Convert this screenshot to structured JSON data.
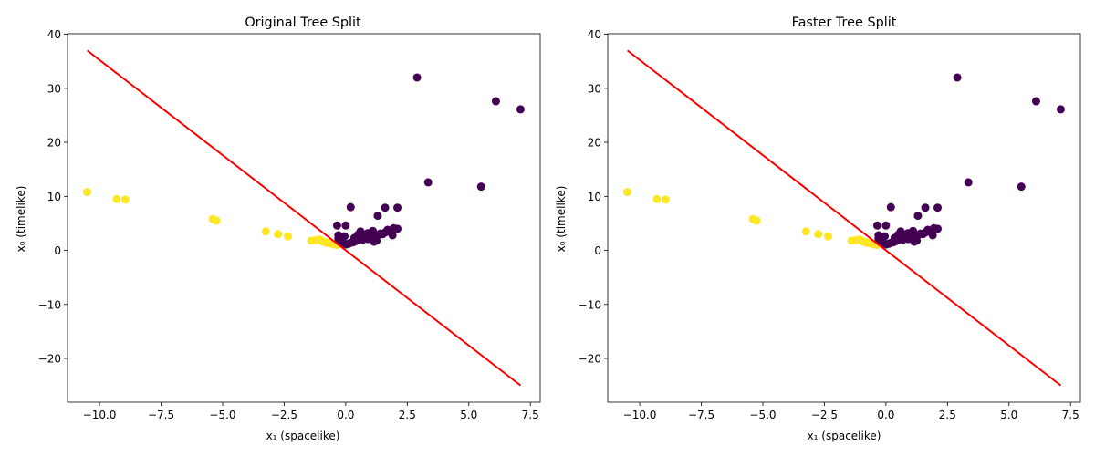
{
  "chart_data": [
    {
      "type": "scatter",
      "title": "Original Tree Split",
      "xlabel": "x₁ (spacelike)",
      "ylabel": "x₀ (timelike)",
      "xlim": [
        -11.3,
        7.9
      ],
      "ylim": [
        -28.1,
        40.1
      ],
      "xticks": [
        -10.0,
        -7.5,
        -5.0,
        -2.5,
        0.0,
        2.5,
        5.0,
        7.5
      ],
      "xtick_labels": [
        "−10.0",
        "−7.5",
        "−5.0",
        "−2.5",
        "0.0",
        "2.5",
        "5.0",
        "7.5"
      ],
      "yticks": [
        -20,
        -10,
        0,
        10,
        20,
        30,
        40
      ],
      "ytick_labels": [
        "−20",
        "−10",
        "0",
        "10",
        "20",
        "30",
        "40"
      ],
      "grid": false,
      "colors": {
        "class_a": "#440154",
        "class_b": "#fde725",
        "line": "#ff0000"
      },
      "split_line": {
        "x": [
          -10.5,
          7.1
        ],
        "y": [
          37.0,
          -25.0
        ]
      },
      "series": [
        {
          "class": "class_b",
          "x": [
            -10.5,
            -9.3,
            -8.95,
            -5.4,
            -5.25,
            -3.25,
            -2.75,
            -2.35,
            -1.4,
            -1.2,
            -1.05,
            -0.95,
            -0.85,
            -0.75,
            -0.65,
            -0.55,
            -0.45,
            -0.35
          ],
          "y": [
            10.8,
            9.5,
            9.4,
            5.8,
            5.5,
            3.5,
            3.0,
            2.6,
            1.8,
            1.9,
            2.0,
            1.7,
            1.5,
            1.4,
            1.3,
            1.2,
            1.1,
            1.0
          ]
        },
        {
          "class": "class_a",
          "x": [
            2.9,
            6.1,
            7.1,
            3.35,
            5.5,
            0.2,
            1.6,
            2.1,
            1.3,
            -0.35,
            0.0,
            1.95,
            2.1,
            1.7,
            1.8,
            1.6,
            1.1,
            0.6,
            0.9,
            1.4,
            -0.3,
            -0.3,
            -0.25,
            -0.1,
            0.0,
            0.1,
            0.2,
            0.3,
            0.4,
            0.5,
            0.7,
            0.8,
            1.0,
            1.2,
            1.3,
            0.5,
            0.6,
            0.9,
            1.25,
            1.9,
            -0.05,
            0.35,
            0.75,
            1.5,
            1.15
          ],
          "y": [
            32.0,
            27.6,
            26.1,
            12.6,
            11.8,
            8.0,
            7.9,
            7.9,
            6.4,
            4.6,
            4.6,
            4.1,
            4.0,
            3.8,
            3.5,
            3.3,
            3.6,
            3.5,
            3.2,
            3.1,
            2.8,
            2.2,
            1.6,
            1.3,
            1.1,
            1.2,
            1.4,
            1.5,
            1.7,
            1.9,
            2.0,
            2.2,
            2.4,
            2.6,
            2.8,
            2.9,
            2.5,
            2.1,
            1.8,
            2.8,
            2.6,
            2.3,
            2.7,
            3.0,
            1.6
          ]
        }
      ]
    },
    {
      "type": "scatter",
      "title": "Faster Tree Split",
      "xlabel": "x₁ (spacelike)",
      "ylabel": "x₀ (timelike)",
      "xlim": [
        -11.3,
        7.9
      ],
      "ylim": [
        -28.1,
        40.1
      ],
      "xticks": [
        -10.0,
        -7.5,
        -5.0,
        -2.5,
        0.0,
        2.5,
        5.0,
        7.5
      ],
      "xtick_labels": [
        "−10.0",
        "−7.5",
        "−5.0",
        "−2.5",
        "0.0",
        "2.5",
        "5.0",
        "7.5"
      ],
      "yticks": [
        -20,
        -10,
        0,
        10,
        20,
        30,
        40
      ],
      "ytick_labels": [
        "−20",
        "−10",
        "0",
        "10",
        "20",
        "30",
        "40"
      ],
      "grid": false,
      "colors": {
        "class_a": "#440154",
        "class_b": "#fde725",
        "line": "#ff0000"
      },
      "split_line": {
        "x": [
          -10.5,
          7.1
        ],
        "y": [
          37.0,
          -25.0
        ]
      },
      "series": [
        {
          "class": "class_b",
          "x": [
            -10.5,
            -9.3,
            -8.95,
            -5.4,
            -5.25,
            -3.25,
            -2.75,
            -2.35,
            -1.4,
            -1.2,
            -1.05,
            -0.95,
            -0.85,
            -0.75,
            -0.65,
            -0.55,
            -0.45,
            -0.35
          ],
          "y": [
            10.8,
            9.5,
            9.4,
            5.8,
            5.5,
            3.5,
            3.0,
            2.6,
            1.8,
            1.9,
            2.0,
            1.7,
            1.5,
            1.4,
            1.3,
            1.2,
            1.1,
            1.0
          ]
        },
        {
          "class": "class_a",
          "x": [
            2.9,
            6.1,
            7.1,
            3.35,
            5.5,
            0.2,
            1.6,
            2.1,
            1.3,
            -0.35,
            0.0,
            1.95,
            2.1,
            1.7,
            1.8,
            1.6,
            1.1,
            0.6,
            0.9,
            1.4,
            -0.3,
            -0.3,
            -0.25,
            -0.1,
            0.0,
            0.1,
            0.2,
            0.3,
            0.4,
            0.5,
            0.7,
            0.8,
            1.0,
            1.2,
            1.3,
            0.5,
            0.6,
            0.9,
            1.25,
            1.9,
            -0.05,
            0.35,
            0.75,
            1.5,
            1.15
          ],
          "y": [
            32.0,
            27.6,
            26.1,
            12.6,
            11.8,
            8.0,
            7.9,
            7.9,
            6.4,
            4.6,
            4.6,
            4.1,
            4.0,
            3.8,
            3.5,
            3.3,
            3.6,
            3.5,
            3.2,
            3.1,
            2.8,
            2.2,
            1.6,
            1.3,
            1.1,
            1.2,
            1.4,
            1.5,
            1.7,
            1.9,
            2.0,
            2.2,
            2.4,
            2.6,
            2.8,
            2.9,
            2.5,
            2.1,
            1.8,
            2.8,
            2.6,
            2.3,
            2.7,
            3.0,
            1.6
          ]
        }
      ]
    }
  ]
}
